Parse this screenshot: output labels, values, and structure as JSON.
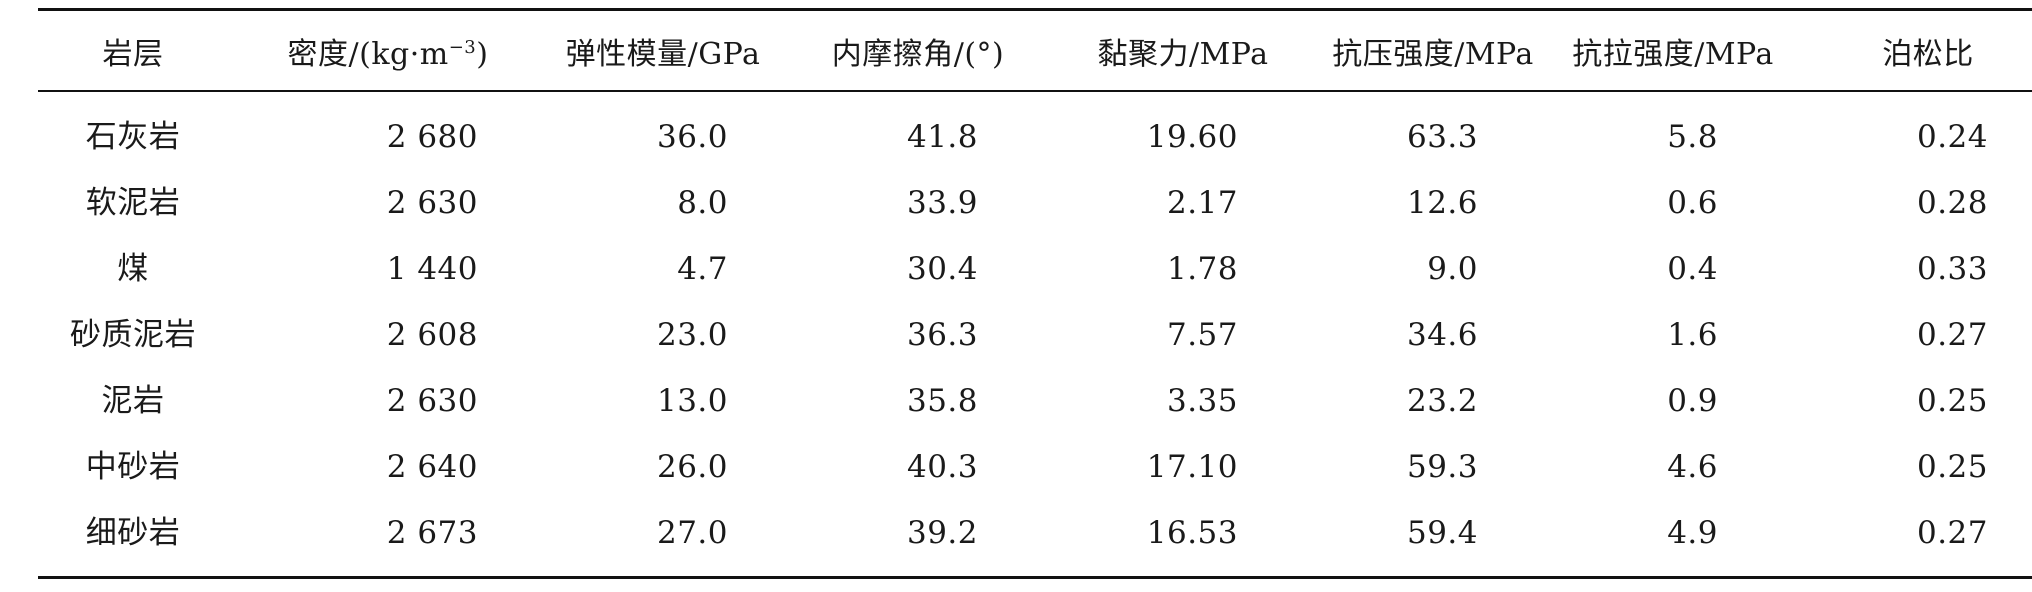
{
  "table": {
    "headers": [
      "岩层",
      "密度/(kg·m",
      "弹性模量/GPa",
      "内摩擦角/(°)",
      "黏聚力/MPa",
      "抗压强度/MPa",
      "抗拉强度/MPa",
      "泊松比"
    ],
    "density_unit_exponent": "−3",
    "density_unit_close": ")",
    "rows": [
      [
        "石灰岩",
        "2 680",
        "36.0",
        "41.8",
        "19.60",
        "63.3",
        "5.8",
        "0.24"
      ],
      [
        "软泥岩",
        "2 630",
        "8.0",
        "33.9",
        "2.17",
        "12.6",
        "0.6",
        "0.28"
      ],
      [
        "煤",
        "1 440",
        "4.7",
        "30.4",
        "1.78",
        "9.0",
        "0.4",
        "0.33"
      ],
      [
        "砂质泥岩",
        "2 608",
        "23.0",
        "36.3",
        "7.57",
        "34.6",
        "1.6",
        "0.27"
      ],
      [
        "泥岩",
        "2 630",
        "13.0",
        "35.8",
        "3.35",
        "23.2",
        "0.9",
        "0.25"
      ],
      [
        "中砂岩",
        "2 640",
        "26.0",
        "40.3",
        "17.10",
        "59.3",
        "4.6",
        "0.25"
      ],
      [
        "细砂岩",
        "2 673",
        "27.0",
        "39.2",
        "16.53",
        "59.4",
        "4.9",
        "0.27"
      ]
    ]
  }
}
